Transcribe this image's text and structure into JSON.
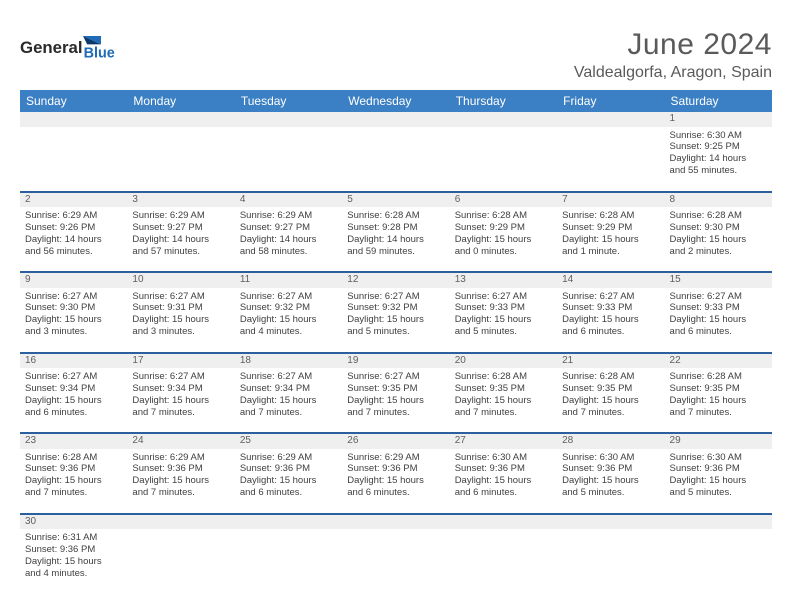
{
  "brand": {
    "part1": "General",
    "part2": "Blue"
  },
  "title": "June 2024",
  "location": "Valdealgorfa, Aragon, Spain",
  "colors": {
    "header_bg": "#3b7fc4",
    "header_text": "#ffffff",
    "divider": "#2b5f9e",
    "daynum_bg": "#efefef",
    "daynum_border": "#c8d4e3",
    "text": "#404040",
    "title_text": "#5a5a5a",
    "logo_blue": "#1f6bb8",
    "logo_dark": "#2a2a2a"
  },
  "day_headers": [
    "Sunday",
    "Monday",
    "Tuesday",
    "Wednesday",
    "Thursday",
    "Friday",
    "Saturday"
  ],
  "weeks": [
    [
      null,
      null,
      null,
      null,
      null,
      null,
      {
        "n": "1",
        "sr": "6:30 AM",
        "ss": "9:25 PM",
        "dl": "14 hours and 55 minutes."
      }
    ],
    [
      {
        "n": "2",
        "sr": "6:29 AM",
        "ss": "9:26 PM",
        "dl": "14 hours and 56 minutes."
      },
      {
        "n": "3",
        "sr": "6:29 AM",
        "ss": "9:27 PM",
        "dl": "14 hours and 57 minutes."
      },
      {
        "n": "4",
        "sr": "6:29 AM",
        "ss": "9:27 PM",
        "dl": "14 hours and 58 minutes."
      },
      {
        "n": "5",
        "sr": "6:28 AM",
        "ss": "9:28 PM",
        "dl": "14 hours and 59 minutes."
      },
      {
        "n": "6",
        "sr": "6:28 AM",
        "ss": "9:29 PM",
        "dl": "15 hours and 0 minutes."
      },
      {
        "n": "7",
        "sr": "6:28 AM",
        "ss": "9:29 PM",
        "dl": "15 hours and 1 minute."
      },
      {
        "n": "8",
        "sr": "6:28 AM",
        "ss": "9:30 PM",
        "dl": "15 hours and 2 minutes."
      }
    ],
    [
      {
        "n": "9",
        "sr": "6:27 AM",
        "ss": "9:30 PM",
        "dl": "15 hours and 3 minutes."
      },
      {
        "n": "10",
        "sr": "6:27 AM",
        "ss": "9:31 PM",
        "dl": "15 hours and 3 minutes."
      },
      {
        "n": "11",
        "sr": "6:27 AM",
        "ss": "9:32 PM",
        "dl": "15 hours and 4 minutes."
      },
      {
        "n": "12",
        "sr": "6:27 AM",
        "ss": "9:32 PM",
        "dl": "15 hours and 5 minutes."
      },
      {
        "n": "13",
        "sr": "6:27 AM",
        "ss": "9:33 PM",
        "dl": "15 hours and 5 minutes."
      },
      {
        "n": "14",
        "sr": "6:27 AM",
        "ss": "9:33 PM",
        "dl": "15 hours and 6 minutes."
      },
      {
        "n": "15",
        "sr": "6:27 AM",
        "ss": "9:33 PM",
        "dl": "15 hours and 6 minutes."
      }
    ],
    [
      {
        "n": "16",
        "sr": "6:27 AM",
        "ss": "9:34 PM",
        "dl": "15 hours and 6 minutes."
      },
      {
        "n": "17",
        "sr": "6:27 AM",
        "ss": "9:34 PM",
        "dl": "15 hours and 7 minutes."
      },
      {
        "n": "18",
        "sr": "6:27 AM",
        "ss": "9:34 PM",
        "dl": "15 hours and 7 minutes."
      },
      {
        "n": "19",
        "sr": "6:27 AM",
        "ss": "9:35 PM",
        "dl": "15 hours and 7 minutes."
      },
      {
        "n": "20",
        "sr": "6:28 AM",
        "ss": "9:35 PM",
        "dl": "15 hours and 7 minutes."
      },
      {
        "n": "21",
        "sr": "6:28 AM",
        "ss": "9:35 PM",
        "dl": "15 hours and 7 minutes."
      },
      {
        "n": "22",
        "sr": "6:28 AM",
        "ss": "9:35 PM",
        "dl": "15 hours and 7 minutes."
      }
    ],
    [
      {
        "n": "23",
        "sr": "6:28 AM",
        "ss": "9:36 PM",
        "dl": "15 hours and 7 minutes."
      },
      {
        "n": "24",
        "sr": "6:29 AM",
        "ss": "9:36 PM",
        "dl": "15 hours and 7 minutes."
      },
      {
        "n": "25",
        "sr": "6:29 AM",
        "ss": "9:36 PM",
        "dl": "15 hours and 6 minutes."
      },
      {
        "n": "26",
        "sr": "6:29 AM",
        "ss": "9:36 PM",
        "dl": "15 hours and 6 minutes."
      },
      {
        "n": "27",
        "sr": "6:30 AM",
        "ss": "9:36 PM",
        "dl": "15 hours and 6 minutes."
      },
      {
        "n": "28",
        "sr": "6:30 AM",
        "ss": "9:36 PM",
        "dl": "15 hours and 5 minutes."
      },
      {
        "n": "29",
        "sr": "6:30 AM",
        "ss": "9:36 PM",
        "dl": "15 hours and 5 minutes."
      }
    ],
    [
      {
        "n": "30",
        "sr": "6:31 AM",
        "ss": "9:36 PM",
        "dl": "15 hours and 4 minutes."
      },
      null,
      null,
      null,
      null,
      null,
      null
    ]
  ],
  "labels": {
    "sunrise": "Sunrise:",
    "sunset": "Sunset:",
    "daylight": "Daylight:"
  }
}
